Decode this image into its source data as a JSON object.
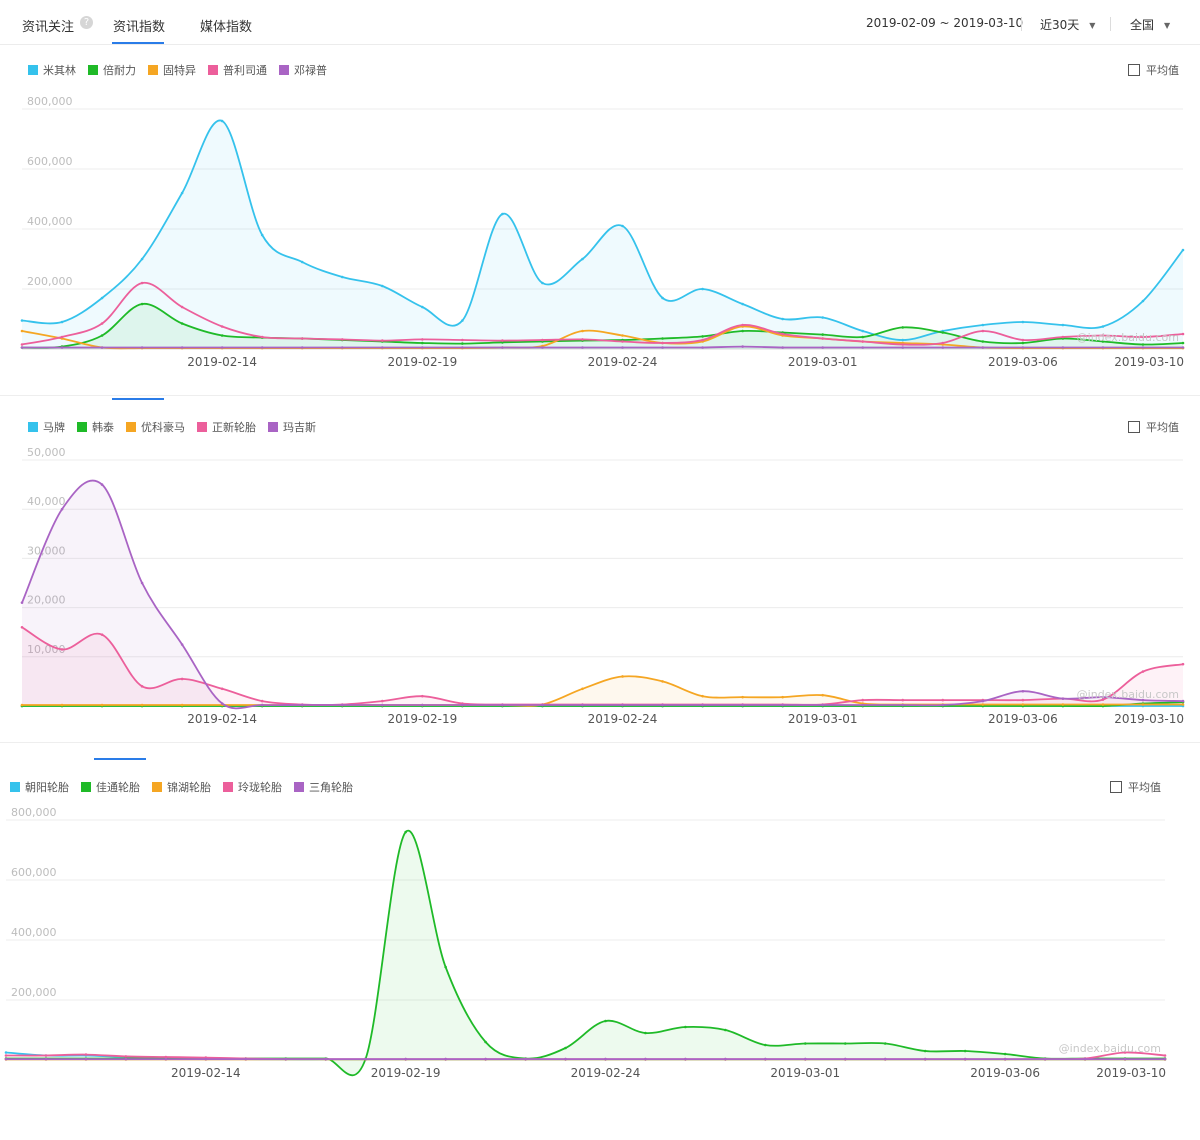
{
  "header": {
    "title": "资讯关注",
    "help_glyph": "?",
    "tabs": [
      {
        "label": "资讯指数",
        "active": true
      },
      {
        "label": "媒体指数",
        "active": false
      }
    ],
    "date_range": "2019-02-09 ~ 2019-03-10",
    "period": "近30天",
    "region": "全国",
    "accent_color": "#2a7ce8"
  },
  "avg_label": "平均值",
  "watermark": "@index.baidu.com",
  "chart_data": [
    {
      "type": "area",
      "x_dates": [
        "2019-02-09",
        "2019-02-10",
        "2019-02-11",
        "2019-02-12",
        "2019-02-13",
        "2019-02-14",
        "2019-02-15",
        "2019-02-16",
        "2019-02-17",
        "2019-02-18",
        "2019-02-19",
        "2019-02-20",
        "2019-02-21",
        "2019-02-22",
        "2019-02-23",
        "2019-02-24",
        "2019-02-25",
        "2019-02-26",
        "2019-02-27",
        "2019-02-28",
        "2019-03-01",
        "2019-03-02",
        "2019-03-03",
        "2019-03-04",
        "2019-03-05",
        "2019-03-06",
        "2019-03-07",
        "2019-03-08",
        "2019-03-09",
        "2019-03-10"
      ],
      "x_tick_labels": [
        "2019-02-14",
        "2019-02-19",
        "2019-02-24",
        "2019-03-01",
        "2019-03-06",
        "2019-03-10"
      ],
      "y_tick_labels": [
        "200,000",
        "400,000",
        "600,000",
        "800,000"
      ],
      "ylim": [
        0,
        800000
      ],
      "series": [
        {
          "name": "米其林",
          "color": "#35c2ec",
          "values": [
            95000,
            90000,
            170000,
            300000,
            520000,
            760000,
            380000,
            290000,
            240000,
            210000,
            140000,
            95000,
            450000,
            220000,
            300000,
            410000,
            170000,
            200000,
            150000,
            100000,
            105000,
            60000,
            30000,
            60000,
            80000,
            90000,
            80000,
            75000,
            160000,
            330000
          ]
        },
        {
          "name": "倍耐力",
          "color": "#1fba28",
          "values": [
            5000,
            8000,
            45000,
            150000,
            85000,
            45000,
            38000,
            35000,
            30000,
            25000,
            20000,
            18000,
            22000,
            25000,
            28000,
            30000,
            35000,
            42000,
            60000,
            55000,
            48000,
            40000,
            72000,
            55000,
            25000,
            20000,
            35000,
            25000,
            15000,
            20000
          ]
        },
        {
          "name": "固特异",
          "color": "#f5a623",
          "values": [
            60000,
            35000,
            5000,
            3000,
            3000,
            3000,
            3000,
            3000,
            3000,
            3000,
            3000,
            3000,
            5000,
            10000,
            60000,
            45000,
            20000,
            25000,
            75000,
            45000,
            35000,
            25000,
            20000,
            15000,
            5000,
            3000,
            3000,
            3000,
            3000,
            3000
          ]
        },
        {
          "name": "普利司通",
          "color": "#ec5f9b",
          "values": [
            15000,
            40000,
            85000,
            220000,
            140000,
            75000,
            40000,
            35000,
            32000,
            28000,
            32000,
            30000,
            28000,
            30000,
            32000,
            25000,
            20000,
            30000,
            80000,
            50000,
            35000,
            25000,
            15000,
            20000,
            60000,
            30000,
            40000,
            45000,
            40000,
            50000
          ]
        },
        {
          "name": "邓禄普",
          "color": "#a964c4",
          "values": [
            5000,
            5000,
            5000,
            5000,
            5000,
            5000,
            5000,
            5000,
            5000,
            5000,
            5000,
            5000,
            5000,
            5000,
            5000,
            5000,
            5000,
            5000,
            8000,
            5000,
            5000,
            5000,
            5000,
            5000,
            5000,
            5000,
            5000,
            5000,
            5000,
            5000
          ]
        }
      ]
    },
    {
      "type": "area",
      "x_dates": [
        "2019-02-09",
        "2019-02-10",
        "2019-02-11",
        "2019-02-12",
        "2019-02-13",
        "2019-02-14",
        "2019-02-15",
        "2019-02-16",
        "2019-02-17",
        "2019-02-18",
        "2019-02-19",
        "2019-02-20",
        "2019-02-21",
        "2019-02-22",
        "2019-02-23",
        "2019-02-24",
        "2019-02-25",
        "2019-02-26",
        "2019-02-27",
        "2019-02-28",
        "2019-03-01",
        "2019-03-02",
        "2019-03-03",
        "2019-03-04",
        "2019-03-05",
        "2019-03-06",
        "2019-03-07",
        "2019-03-08",
        "2019-03-09",
        "2019-03-10"
      ],
      "x_tick_labels": [
        "2019-02-14",
        "2019-02-19",
        "2019-02-24",
        "2019-03-01",
        "2019-03-06",
        "2019-03-10"
      ],
      "y_tick_labels": [
        "10,000",
        "20,000",
        "30,000",
        "40,000",
        "50,000"
      ],
      "ylim": [
        0,
        50000
      ],
      "series": [
        {
          "name": "马牌",
          "color": "#35c2ec",
          "values": [
            0,
            0,
            0,
            0,
            0,
            0,
            0,
            0,
            0,
            0,
            0,
            0,
            0,
            0,
            0,
            0,
            0,
            0,
            0,
            0,
            0,
            0,
            0,
            0,
            0,
            0,
            0,
            0,
            0,
            0
          ]
        },
        {
          "name": "韩泰",
          "color": "#1fba28",
          "values": [
            0,
            0,
            0,
            0,
            0,
            0,
            0,
            0,
            0,
            0,
            0,
            0,
            0,
            0,
            0,
            0,
            0,
            0,
            0,
            0,
            0,
            0,
            0,
            0,
            0,
            0,
            0,
            0,
            500,
            800
          ]
        },
        {
          "name": "优科豪马",
          "color": "#f5a623",
          "values": [
            200,
            200,
            200,
            200,
            200,
            200,
            200,
            200,
            200,
            200,
            200,
            200,
            200,
            300,
            3500,
            6000,
            5000,
            2000,
            1800,
            1800,
            2200,
            500,
            300,
            300,
            300,
            300,
            300,
            300,
            300,
            300
          ]
        },
        {
          "name": "正新轮胎",
          "color": "#ec5f9b",
          "values": [
            16000,
            11500,
            14500,
            4000,
            5500,
            3500,
            1000,
            300,
            300,
            1000,
            2000,
            500,
            300,
            300,
            300,
            300,
            300,
            300,
            300,
            300,
            300,
            1200,
            1200,
            1200,
            1200,
            1200,
            1500,
            1300,
            7000,
            8500
          ]
        },
        {
          "name": "玛吉斯",
          "color": "#a964c4",
          "values": [
            21000,
            40000,
            45000,
            25000,
            12500,
            500,
            200,
            200,
            200,
            200,
            200,
            200,
            200,
            200,
            200,
            200,
            200,
            200,
            200,
            200,
            200,
            200,
            200,
            200,
            1000,
            3000,
            1500,
            1800,
            1200,
            1000
          ]
        }
      ]
    },
    {
      "type": "area",
      "x_dates": [
        "2019-02-09",
        "2019-02-10",
        "2019-02-11",
        "2019-02-12",
        "2019-02-13",
        "2019-02-14",
        "2019-02-15",
        "2019-02-16",
        "2019-02-17",
        "2019-02-18",
        "2019-02-19",
        "2019-02-20",
        "2019-02-21",
        "2019-02-22",
        "2019-02-23",
        "2019-02-24",
        "2019-02-25",
        "2019-02-26",
        "2019-02-27",
        "2019-02-28",
        "2019-03-01",
        "2019-03-02",
        "2019-03-03",
        "2019-03-04",
        "2019-03-05",
        "2019-03-06",
        "2019-03-07",
        "2019-03-08",
        "2019-03-09",
        "2019-03-10"
      ],
      "x_tick_labels": [
        "2019-02-14",
        "2019-02-19",
        "2019-02-24",
        "2019-03-01",
        "2019-03-06",
        "2019-03-10"
      ],
      "y_tick_labels": [
        "200,000",
        "400,000",
        "600,000",
        "800,000"
      ],
      "ylim": [
        0,
        800000
      ],
      "series": [
        {
          "name": "朝阳轮胎",
          "color": "#35c2ec",
          "values": [
            25000,
            15000,
            15000,
            10000,
            8000,
            5000,
            3000,
            2000,
            2000,
            2000,
            2000,
            2000,
            2000,
            2000,
            2000,
            2000,
            2000,
            2000,
            2000,
            2000,
            2000,
            2000,
            2000,
            2000,
            2000,
            2000,
            2000,
            2000,
            2000,
            2000
          ]
        },
        {
          "name": "佳通轮胎",
          "color": "#1fba28",
          "values": [
            5000,
            5000,
            5000,
            5000,
            5000,
            5000,
            5000,
            5000,
            5000,
            5000,
            760000,
            310000,
            60000,
            5000,
            40000,
            130000,
            90000,
            110000,
            100000,
            50000,
            55000,
            55000,
            55000,
            30000,
            30000,
            20000,
            5000,
            5000,
            5000,
            5000
          ]
        },
        {
          "name": "锦湖轮胎",
          "color": "#f5a623",
          "values": [
            2000,
            2000,
            2000,
            2000,
            2000,
            2000,
            2000,
            2000,
            2000,
            2000,
            2000,
            2000,
            2000,
            2000,
            2000,
            2000,
            2000,
            2000,
            2000,
            2000,
            2000,
            2000,
            2000,
            2000,
            2000,
            2000,
            2000,
            2000,
            2000,
            2000
          ]
        },
        {
          "name": "玲珑轮胎",
          "color": "#ec5f9b",
          "values": [
            15000,
            15000,
            18000,
            12000,
            10000,
            8000,
            5000,
            3000,
            3000,
            3000,
            3000,
            3000,
            3000,
            3000,
            3000,
            3000,
            3000,
            3000,
            3000,
            3000,
            3000,
            3000,
            3000,
            3000,
            3000,
            3000,
            3000,
            5000,
            25000,
            15000
          ]
        },
        {
          "name": "三角轮胎",
          "color": "#a964c4",
          "values": [
            3000,
            3000,
            3000,
            3000,
            3000,
            3000,
            3000,
            3000,
            3000,
            3000,
            3000,
            3000,
            3000,
            3000,
            3000,
            3000,
            3000,
            3000,
            3000,
            3000,
            3000,
            3000,
            3000,
            3000,
            3000,
            3000,
            3000,
            3000,
            3000,
            3000
          ]
        }
      ]
    }
  ]
}
